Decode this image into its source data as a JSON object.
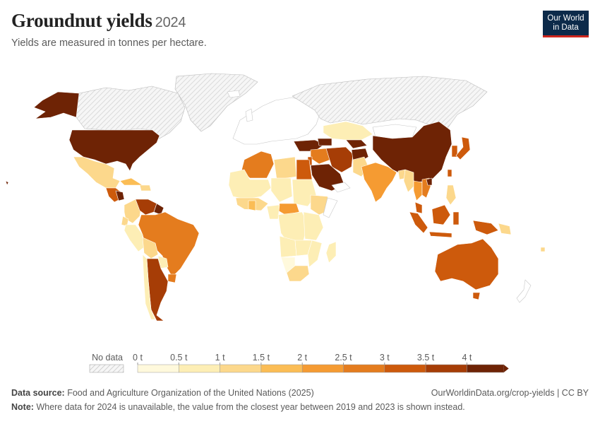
{
  "header": {
    "title": "Groundnut yields",
    "year": "2024",
    "subtitle": "Yields are measured in tonnes per hectare."
  },
  "logo": {
    "line1": "Our World",
    "line2": "in Data"
  },
  "legend": {
    "no_data_label": "No data",
    "tick_labels": [
      "0 t",
      "0.5 t",
      "1 t",
      "1.5 t",
      "2 t",
      "2.5 t",
      "3 t",
      "3.5 t",
      "4 t"
    ],
    "bin_colors": [
      "#fff9dc",
      "#fdeeb5",
      "#fcd88c",
      "#fbbd55",
      "#f59b32",
      "#e47c1e",
      "#cd5a0c",
      "#a63d06",
      "#6e2305"
    ]
  },
  "footer": {
    "source_label": "Data source:",
    "source_text": "Food and Agriculture Organization of the United Nations (2025)",
    "credit": "OurWorldinData.org/crop-yields | CC BY",
    "note_label": "Note:",
    "note_text": "Where data for 2024 is unavailable, the value from the closest year between 2019 and 2023 is shown instead."
  }
}
